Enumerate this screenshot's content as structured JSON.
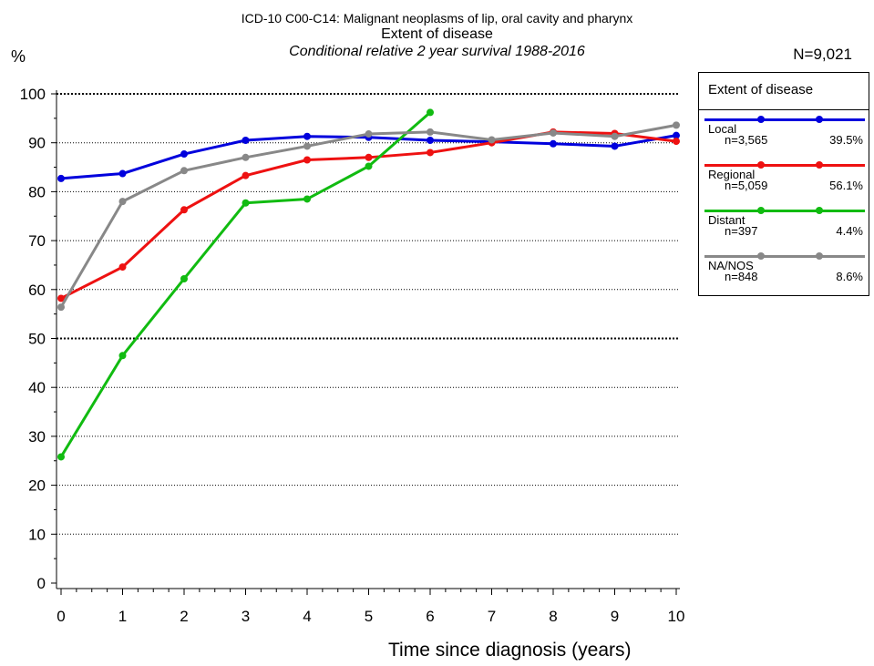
{
  "header": {
    "title_line1": "ICD-10 C00-C14: Malignant neoplasms of lip, oral cavity and pharynx",
    "title_line2": "Extent of disease",
    "title_line3": "Conditional relative 2 year survival 1988-2016",
    "y_unit": "%",
    "n_total": "N=9,021"
  },
  "legend": {
    "title": "Extent of disease",
    "items": [
      {
        "name": "Local",
        "n": "n=3,565",
        "pct": "39.5%",
        "color": "#0000dd"
      },
      {
        "name": "Regional",
        "n": "n=5,059",
        "pct": "56.1%",
        "color": "#ee1111"
      },
      {
        "name": "Distant",
        "n": "n=397",
        "pct": "4.4%",
        "color": "#11bb11"
      },
      {
        "name": "NA/NOS",
        "n": "n=848",
        "pct": "8.6%",
        "color": "#888888"
      }
    ]
  },
  "chart_data": {
    "type": "line",
    "xlabel": "Time since diagnosis (years)",
    "ylabel": "%",
    "xlim": [
      0,
      10
    ],
    "ylim": [
      0,
      100
    ],
    "x_ticks": [
      0,
      1,
      2,
      3,
      4,
      5,
      6,
      7,
      8,
      9,
      10
    ],
    "y_ticks": [
      0,
      10,
      20,
      30,
      40,
      50,
      60,
      70,
      80,
      90,
      100
    ],
    "grid": "horizontal dotted",
    "legend_position": "right",
    "series": [
      {
        "name": "Local",
        "color": "#0000dd",
        "x": [
          0,
          1,
          2,
          3,
          4,
          5,
          6,
          7,
          8,
          9,
          10
        ],
        "y": [
          82.7,
          83.7,
          87.7,
          90.5,
          91.3,
          91.1,
          90.5,
          90.2,
          89.8,
          89.3,
          91.5
        ]
      },
      {
        "name": "Regional",
        "color": "#ee1111",
        "x": [
          0,
          1,
          2,
          3,
          4,
          5,
          6,
          7,
          8,
          9,
          10
        ],
        "y": [
          58.2,
          64.6,
          76.3,
          83.3,
          86.5,
          87.0,
          88.0,
          90.0,
          92.2,
          91.9,
          90.3
        ]
      },
      {
        "name": "Distant",
        "color": "#11bb11",
        "x": [
          0,
          1,
          2,
          3,
          4,
          5,
          6
        ],
        "y": [
          25.8,
          46.5,
          62.2,
          77.7,
          78.5,
          85.2,
          96.2
        ]
      },
      {
        "name": "NA/NOS",
        "color": "#888888",
        "x": [
          0,
          1,
          2,
          3,
          4,
          5,
          6,
          7,
          8,
          9,
          10
        ],
        "y": [
          56.4,
          78.0,
          84.3,
          87.0,
          89.3,
          91.8,
          92.2,
          90.6,
          92.0,
          91.3,
          93.6
        ]
      }
    ]
  }
}
